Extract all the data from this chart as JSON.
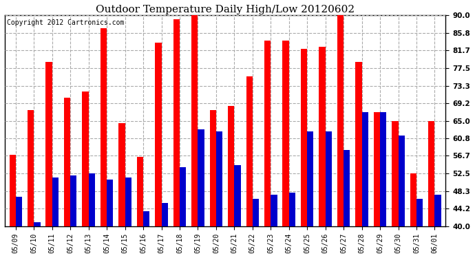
{
  "title": "Outdoor Temperature Daily High/Low 20120602",
  "copyright": "Copyright 2012 Cartronics.com",
  "dates": [
    "05/09",
    "05/10",
    "05/11",
    "05/12",
    "05/13",
    "05/14",
    "05/15",
    "05/16",
    "05/17",
    "05/18",
    "05/19",
    "05/20",
    "05/21",
    "05/22",
    "05/23",
    "05/24",
    "05/25",
    "05/26",
    "05/27",
    "05/28",
    "05/29",
    "05/30",
    "05/31",
    "06/01"
  ],
  "highs": [
    57.0,
    67.5,
    79.0,
    70.5,
    72.0,
    87.0,
    64.5,
    56.5,
    83.5,
    89.0,
    91.0,
    67.5,
    68.5,
    75.5,
    84.0,
    84.0,
    82.0,
    82.5,
    90.0,
    79.0,
    67.0,
    65.0,
    52.5,
    65.0
  ],
  "lows": [
    47.0,
    41.0,
    51.5,
    52.0,
    52.5,
    51.0,
    51.5,
    43.5,
    45.5,
    54.0,
    63.0,
    62.5,
    54.5,
    46.5,
    47.5,
    48.0,
    62.5,
    62.5,
    58.0,
    67.0,
    67.0,
    61.5,
    46.5,
    47.5
  ],
  "high_color": "#ff0000",
  "low_color": "#0000cc",
  "ylim": [
    40.0,
    90.0
  ],
  "yticks": [
    40.0,
    44.2,
    48.3,
    52.5,
    56.7,
    60.8,
    65.0,
    69.2,
    73.3,
    77.5,
    81.7,
    85.8,
    90.0
  ],
  "grid_color": "#aaaaaa",
  "bg_color": "#ffffff",
  "plot_bg_color": "#ffffff",
  "title_fontsize": 11,
  "copyright_fontsize": 7,
  "bar_width": 0.35,
  "figwidth": 6.9,
  "figheight": 3.75,
  "dpi": 100
}
